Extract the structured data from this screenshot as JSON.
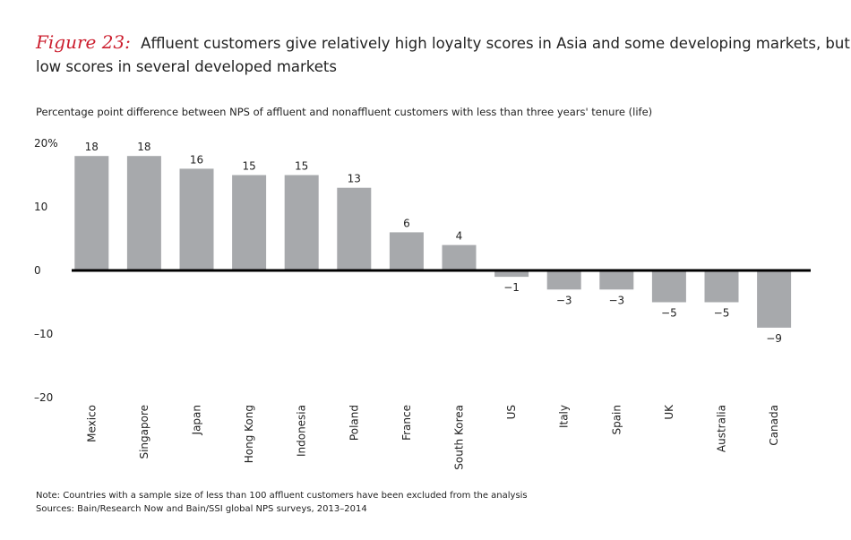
{
  "chart_data": {
    "type": "bar",
    "figure_label": "Figure 23:",
    "title": "Affluent customers give relatively high loyalty scores in Asia and some developing markets, but low scores in several developed markets",
    "subtitle": "Percentage point difference between NPS of affluent and nonaffluent customers with less than three years' tenure (life)",
    "categories": [
      "Mexico",
      "Singapore",
      "Japan",
      "Hong Kong",
      "Indonesia",
      "Poland",
      "France",
      "South Korea",
      "US",
      "Italy",
      "Spain",
      "UK",
      "Australia",
      "Canada"
    ],
    "values": [
      18,
      18,
      16,
      15,
      15,
      13,
      6,
      4,
      -1,
      -3,
      -3,
      -5,
      -5,
      -9
    ],
    "value_labels": [
      "18",
      "18",
      "16",
      "15",
      "15",
      "13",
      "6",
      "4",
      "−1",
      "−3",
      "−3",
      "−5",
      "−5",
      "−9"
    ],
    "color": "#a7a9ac",
    "ylim": [
      -20,
      20
    ],
    "yticks": [
      {
        "value": 20,
        "label": "20%"
      },
      10,
      0,
      {
        "value": -10,
        "label": "–10"
      },
      {
        "value": -20,
        "label": "–20"
      }
    ],
    "note": "Note: Countries with a sample size of less than 100 affluent customers have been excluded from the analysis",
    "source": "Sources: Bain/Research Now and Bain/SSI global NPS surveys, 2013–2014"
  }
}
